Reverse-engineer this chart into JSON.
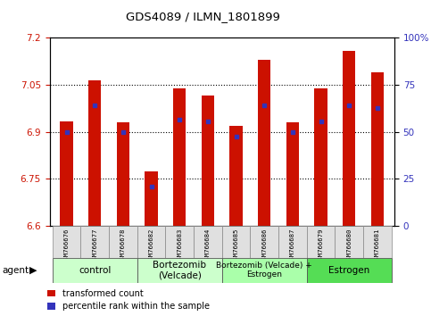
{
  "title": "GDS4089 / ILMN_1801899",
  "samples": [
    "GSM766676",
    "GSM766677",
    "GSM766678",
    "GSM766682",
    "GSM766683",
    "GSM766684",
    "GSM766685",
    "GSM766686",
    "GSM766687",
    "GSM766679",
    "GSM766680",
    "GSM766681"
  ],
  "bar_values": [
    6.935,
    7.065,
    6.93,
    6.775,
    7.04,
    7.015,
    6.92,
    7.13,
    6.93,
    7.04,
    7.16,
    7.09
  ],
  "percentile_values": [
    6.9,
    6.985,
    6.9,
    6.725,
    6.94,
    6.935,
    6.885,
    6.985,
    6.9,
    6.935,
    6.985,
    6.975
  ],
  "ymin": 6.6,
  "ymax": 7.2,
  "y_ticks": [
    6.6,
    6.75,
    6.9,
    7.05,
    7.2
  ],
  "right_y_ticks": [
    0,
    25,
    50,
    75,
    100
  ],
  "group_extents": [
    [
      0,
      2,
      "control",
      "#ccffcc"
    ],
    [
      3,
      5,
      "Bortezomib\n(Velcade)",
      "#ccffcc"
    ],
    [
      6,
      8,
      "Bortezomib (Velcade) +\nEstrogen",
      "#aaffaa"
    ],
    [
      9,
      11,
      "Estrogen",
      "#55dd55"
    ]
  ],
  "bar_color": "#cc1100",
  "percentile_color": "#3333bb",
  "bar_width": 0.45,
  "ylabel_color_left": "#cc1100",
  "ylabel_color_right": "#3333bb",
  "background_color": "#ffffff",
  "legend_items": [
    "transformed count",
    "percentile rank within the sample"
  ]
}
